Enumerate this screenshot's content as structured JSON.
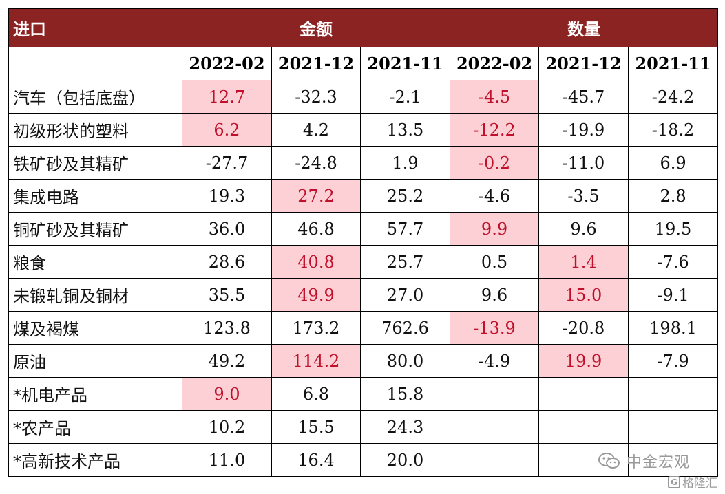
{
  "table": {
    "corner": "进口",
    "group_amount": "金额",
    "group_quantity": "数量",
    "periods": [
      "2022-02",
      "2021-12",
      "2021-11",
      "2022-02",
      "2021-12",
      "2021-11"
    ],
    "rows": [
      {
        "name": "汽车（包括底盘）",
        "cells": [
          {
            "v": "12.7",
            "h": true
          },
          {
            "v": "-32.3",
            "h": false
          },
          {
            "v": "-2.1",
            "h": false
          },
          {
            "v": "-4.5",
            "h": true
          },
          {
            "v": "-45.7",
            "h": false
          },
          {
            "v": "-24.2",
            "h": false
          }
        ]
      },
      {
        "name": "初级形状的塑料",
        "cells": [
          {
            "v": "6.2",
            "h": true
          },
          {
            "v": "4.2",
            "h": false
          },
          {
            "v": "13.5",
            "h": false
          },
          {
            "v": "-12.2",
            "h": true
          },
          {
            "v": "-19.9",
            "h": false
          },
          {
            "v": "-18.2",
            "h": false
          }
        ]
      },
      {
        "name": "铁矿砂及其精矿",
        "cells": [
          {
            "v": "-27.7",
            "h": false
          },
          {
            "v": "-24.8",
            "h": false
          },
          {
            "v": "1.9",
            "h": false
          },
          {
            "v": "-0.2",
            "h": true
          },
          {
            "v": "-11.0",
            "h": false
          },
          {
            "v": "6.9",
            "h": false
          }
        ]
      },
      {
        "name": "集成电路",
        "cells": [
          {
            "v": "19.3",
            "h": false
          },
          {
            "v": "27.2",
            "h": true
          },
          {
            "v": "25.2",
            "h": false
          },
          {
            "v": "-4.6",
            "h": false
          },
          {
            "v": "-3.5",
            "h": false
          },
          {
            "v": "2.8",
            "h": false
          }
        ]
      },
      {
        "name": "铜矿砂及其精矿",
        "cells": [
          {
            "v": "36.0",
            "h": false
          },
          {
            "v": "46.8",
            "h": false
          },
          {
            "v": "57.7",
            "h": false
          },
          {
            "v": "9.9",
            "h": true
          },
          {
            "v": "9.6",
            "h": false
          },
          {
            "v": "19.5",
            "h": false
          }
        ]
      },
      {
        "name": "粮食",
        "cells": [
          {
            "v": "28.6",
            "h": false
          },
          {
            "v": "40.8",
            "h": true
          },
          {
            "v": "25.7",
            "h": false
          },
          {
            "v": "0.5",
            "h": false
          },
          {
            "v": "1.4",
            "h": true
          },
          {
            "v": "-7.6",
            "h": false
          }
        ]
      },
      {
        "name": "未锻轧铜及铜材",
        "cells": [
          {
            "v": "35.5",
            "h": false
          },
          {
            "v": "49.9",
            "h": true
          },
          {
            "v": "27.0",
            "h": false
          },
          {
            "v": "9.6",
            "h": false
          },
          {
            "v": "15.0",
            "h": true
          },
          {
            "v": "-9.1",
            "h": false
          }
        ]
      },
      {
        "name": "煤及褐煤",
        "cells": [
          {
            "v": "123.8",
            "h": false
          },
          {
            "v": "173.2",
            "h": false
          },
          {
            "v": "762.6",
            "h": false
          },
          {
            "v": "-13.9",
            "h": true
          },
          {
            "v": "-20.8",
            "h": false
          },
          {
            "v": "198.1",
            "h": false
          }
        ]
      },
      {
        "name": "原油",
        "cells": [
          {
            "v": "49.2",
            "h": false
          },
          {
            "v": "114.2",
            "h": true
          },
          {
            "v": "80.0",
            "h": false
          },
          {
            "v": "-4.9",
            "h": false
          },
          {
            "v": "19.9",
            "h": true
          },
          {
            "v": "-7.9",
            "h": false
          }
        ]
      },
      {
        "name": "*机电产品",
        "cells": [
          {
            "v": "9.0",
            "h": true
          },
          {
            "v": "6.8",
            "h": false
          },
          {
            "v": "15.8",
            "h": false
          },
          {
            "v": "",
            "h": false
          },
          {
            "v": "",
            "h": false
          },
          {
            "v": "",
            "h": false
          }
        ]
      },
      {
        "name": "*农产品",
        "cells": [
          {
            "v": "10.2",
            "h": false
          },
          {
            "v": "15.5",
            "h": false
          },
          {
            "v": "24.3",
            "h": false
          },
          {
            "v": "",
            "h": false
          },
          {
            "v": "",
            "h": false
          },
          {
            "v": "",
            "h": false
          }
        ]
      },
      {
        "name": "*高新技术产品",
        "cells": [
          {
            "v": "11.0",
            "h": false
          },
          {
            "v": "16.4",
            "h": false
          },
          {
            "v": "20.0",
            "h": false
          },
          {
            "v": "",
            "h": false
          },
          {
            "v": "",
            "h": false
          },
          {
            "v": "",
            "h": false
          }
        ]
      }
    ]
  },
  "colors": {
    "header_bg": "#8b2323",
    "highlight_bg": "#fcd0d4",
    "highlight_text": "#c0102c"
  },
  "watermark": {
    "icon": "wechat-icon",
    "text": "中金宏观",
    "brand_icon": "gelonghui-icon",
    "brand_text": "格隆汇",
    "brand_letter": "G"
  }
}
